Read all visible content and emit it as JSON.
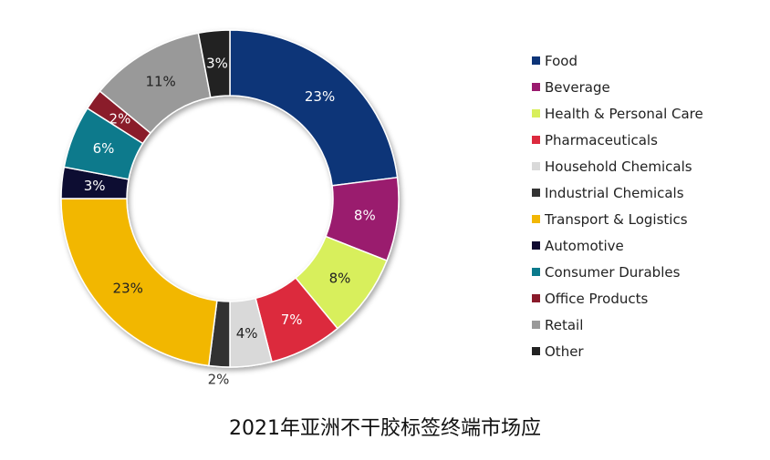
{
  "chart_data": {
    "type": "pie",
    "style": "donut",
    "title": "2021年亚洲不干胶标签终端市场应",
    "legend_position": "right",
    "slices": [
      {
        "label": "Food",
        "value": 23,
        "display": "23%",
        "color": "#0d3478"
      },
      {
        "label": "Beverage",
        "value": 8,
        "display": "8%",
        "color": "#9a1a6e"
      },
      {
        "label": "Health & Personal Care",
        "value": 8,
        "display": "8%",
        "color": "#d8ef5c"
      },
      {
        "label": "Pharmaceuticals",
        "value": 7,
        "display": "7%",
        "color": "#dc2a3e"
      },
      {
        "label": "Household Chemicals",
        "value": 4,
        "display": "4%",
        "color": "#d9d9d9"
      },
      {
        "label": "Industrial Chemicals",
        "value": 2,
        "display": "2%",
        "color": "#333333"
      },
      {
        "label": "Transport & Logistics",
        "value": 23,
        "display": "23%",
        "color": "#f2b705"
      },
      {
        "label": "Automotive",
        "value": 3,
        "display": "3%",
        "color": "#0f0a30"
      },
      {
        "label": "Consumer Durables",
        "value": 6,
        "display": "6%",
        "color": "#0a7a8c"
      },
      {
        "label": "Office Products",
        "value": 2,
        "display": "2%",
        "color": "#8a1a2a"
      },
      {
        "label": "Retail",
        "value": 11,
        "display": "11%",
        "color": "#999999"
      },
      {
        "label": "Other",
        "value": 3,
        "display": "3%",
        "color": "#222222"
      }
    ]
  }
}
